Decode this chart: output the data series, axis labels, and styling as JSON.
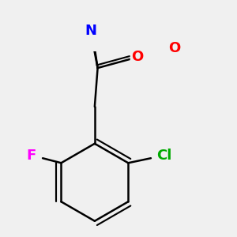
{
  "background_color": "#f0f0f0",
  "bond_color": "#000000",
  "bond_width": 1.8,
  "atom_colors": {
    "N": "#0000ff",
    "O": "#ff0000",
    "F": "#ff00ff",
    "Cl": "#00aa00",
    "C": "#000000",
    "H": "#4a8fa8"
  },
  "font_size_atoms": 13,
  "font_size_small": 11
}
